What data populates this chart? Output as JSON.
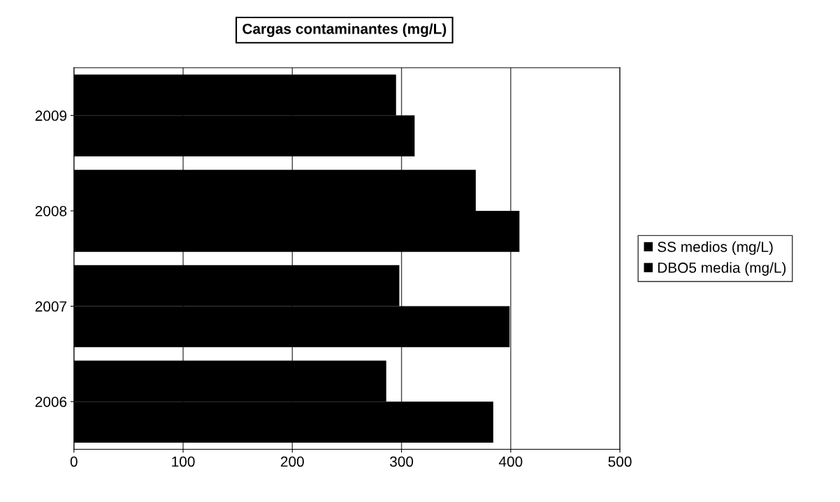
{
  "chart_data": {
    "type": "bar",
    "orientation": "horizontal",
    "title": "Cargas contaminantes (mg/L)",
    "categories": [
      "2009",
      "2008",
      "2007",
      "2006"
    ],
    "series": [
      {
        "name": "SS medios (mg/L)",
        "color": "#000000",
        "values": [
          295,
          368,
          298,
          286
        ]
      },
      {
        "name": "DBO5 media (mg/L)",
        "color": "#000000",
        "values": [
          312,
          408,
          399,
          384
        ]
      }
    ],
    "xlim": [
      0,
      500
    ],
    "xticks": [
      0,
      100,
      200,
      300,
      400,
      500
    ],
    "grid": "x",
    "legend": "right"
  }
}
